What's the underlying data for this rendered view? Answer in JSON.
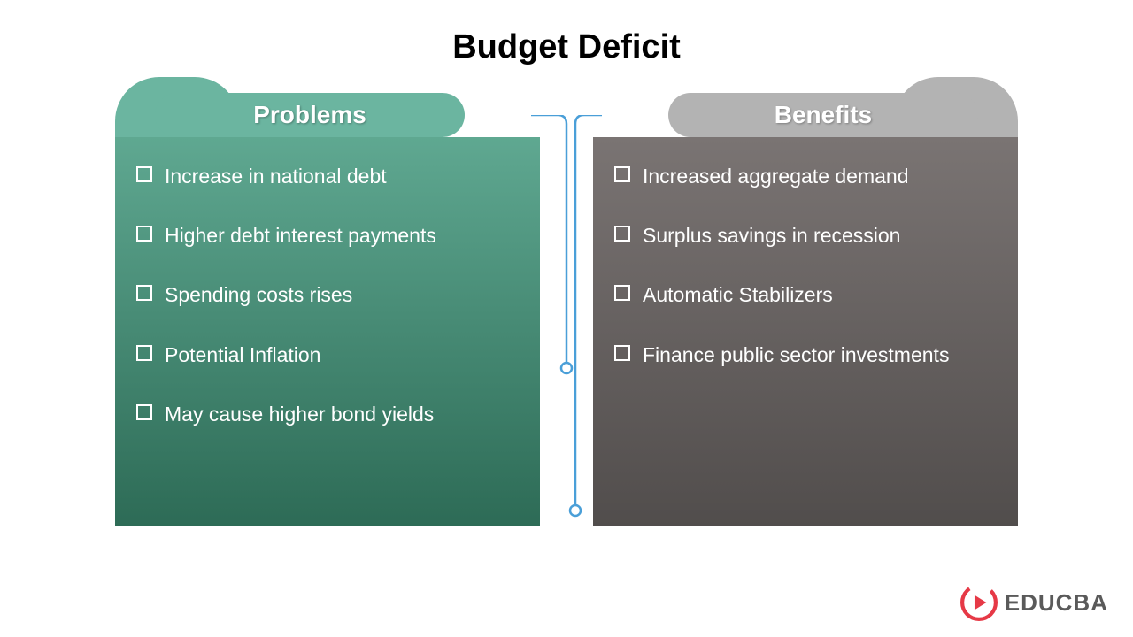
{
  "title": "Budget Deficit",
  "columns": {
    "left": {
      "label": "Problems",
      "tab_back_color": "#6bb5a0",
      "tab_label_color": "#6bb5a0",
      "gradient_start": "#5fa891",
      "gradient_end": "#2d6b56",
      "items": [
        "Increase in national debt",
        "Higher debt interest payments",
        "Spending costs rises",
        "Potential Inflation",
        "May cause higher bond yields"
      ]
    },
    "right": {
      "label": "Benefits",
      "tab_back_color": "#b3b3b3",
      "tab_label_color": "#b3b3b3",
      "gradient_start": "#7a7473",
      "gradient_end": "#514d4c",
      "items": [
        "Increased aggregate demand",
        "Surplus savings in recession",
        "Automatic Stabilizers",
        "Finance public sector investments"
      ]
    }
  },
  "connector": {
    "color": "#4a9fd8",
    "node_fill": "#ffffff",
    "node_stroke": "#4a9fd8"
  },
  "logo": {
    "text": "EDUCBA",
    "icon_color": "#e63946",
    "text_color": "#5a5a5a"
  }
}
